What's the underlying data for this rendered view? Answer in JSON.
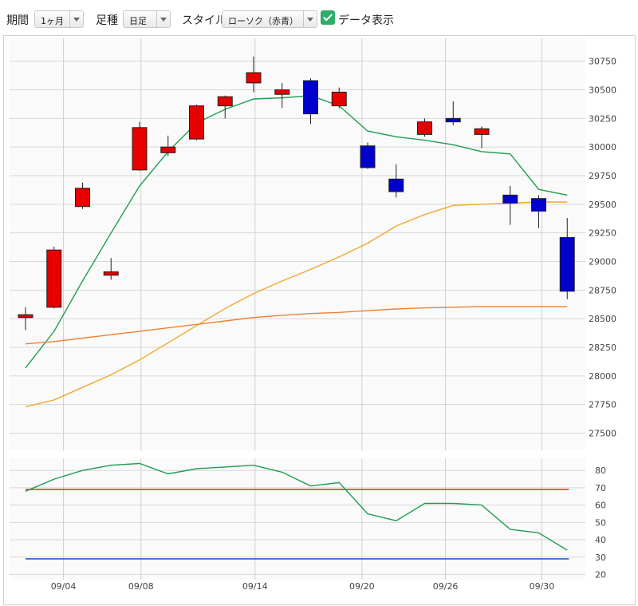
{
  "toolbar": {
    "period_label": "期間",
    "period_value": "1ヶ月",
    "ashi_label": "足種",
    "ashi_value": "日足",
    "style_label": "スタイル",
    "style_value": "ローソク（赤青）",
    "data_display_label": "データ表示",
    "data_display_checked": true
  },
  "chart_data": [
    {
      "type": "candlestick",
      "title": "",
      "x_ticks": [
        "09/04",
        "09/08",
        "09/14",
        "09/20",
        "09/26",
        "09/30"
      ],
      "y_ticks": [
        27500,
        27750,
        28000,
        28250,
        28500,
        28750,
        29000,
        29250,
        29500,
        29750,
        30000,
        30250,
        30500,
        30750
      ],
      "ylim": [
        27350,
        30950
      ],
      "up_color": "#e60000",
      "down_color": "#0000cc",
      "candles": [
        {
          "i": 0,
          "open": 28510,
          "close": 28535,
          "high": 28600,
          "low": 28400
        },
        {
          "i": 1,
          "open": 28600,
          "close": 29100,
          "high": 29130,
          "low": 28590
        },
        {
          "i": 2,
          "open": 29480,
          "close": 29640,
          "high": 29690,
          "low": 29460
        },
        {
          "i": 3,
          "open": 28880,
          "close": 28910,
          "high": 29030,
          "low": 28840
        },
        {
          "i": 4,
          "open": 29800,
          "close": 30170,
          "high": 30220,
          "low": 29790
        },
        {
          "i": 5,
          "open": 29950,
          "close": 30000,
          "high": 30100,
          "low": 29920
        },
        {
          "i": 6,
          "open": 30070,
          "close": 30360,
          "high": 30370,
          "low": 30060
        },
        {
          "i": 7,
          "open": 30360,
          "close": 30440,
          "high": 30450,
          "low": 30250
        },
        {
          "i": 8,
          "open": 30560,
          "close": 30650,
          "high": 30790,
          "low": 30480
        },
        {
          "i": 9,
          "open": 30460,
          "close": 30500,
          "high": 30560,
          "low": 30340
        },
        {
          "i": 10,
          "open": 30580,
          "close": 30290,
          "high": 30600,
          "low": 30200
        },
        {
          "i": 11,
          "open": 30360,
          "close": 30480,
          "high": 30520,
          "low": 30340
        },
        {
          "i": 12,
          "open": 30010,
          "close": 29820,
          "high": 30040,
          "low": 29810
        },
        {
          "i": 13,
          "open": 29720,
          "close": 29610,
          "high": 29850,
          "low": 29560
        },
        {
          "i": 14,
          "open": 30110,
          "close": 30220,
          "high": 30250,
          "low": 30090
        },
        {
          "i": 15,
          "open": 30250,
          "close": 30220,
          "high": 30400,
          "low": 30190
        },
        {
          "i": 16,
          "open": 30110,
          "close": 30160,
          "high": 30180,
          "low": 29990
        },
        {
          "i": 17,
          "open": 29580,
          "close": 29510,
          "high": 29660,
          "low": 29320
        },
        {
          "i": 18,
          "open": 29550,
          "close": 29440,
          "high": 29580,
          "low": 29290
        },
        {
          "i": 19,
          "open": 29210,
          "close": 28740,
          "high": 29380,
          "low": 28670
        }
      ],
      "series": [
        {
          "color": "#1e9e50",
          "values": [
            28070,
            28390,
            28830,
            29250,
            29660,
            29960,
            30210,
            30330,
            30420,
            30430,
            30450,
            30360,
            30140,
            30090,
            30060,
            30020,
            29960,
            29940,
            29630,
            29580
          ]
        },
        {
          "color": "#f0a830",
          "values": [
            27730,
            27790,
            27900,
            28010,
            28140,
            28290,
            28440,
            28590,
            28720,
            28830,
            28930,
            29040,
            29160,
            29310,
            29410,
            29490,
            29500,
            29510,
            29520,
            29520
          ]
        },
        {
          "color": "#f08030",
          "values": [
            28280,
            28300,
            28330,
            28360,
            28390,
            28420,
            28450,
            28480,
            28510,
            28530,
            28545,
            28555,
            28570,
            28585,
            28595,
            28600,
            28605,
            28605,
            28605,
            28605
          ]
        }
      ]
    },
    {
      "type": "line",
      "y_ticks": [
        20,
        30,
        40,
        50,
        60,
        70,
        80
      ],
      "ylim": [
        17,
        87
      ],
      "series": [
        {
          "color": "#1e9e50",
          "values": [
            68,
            75,
            80,
            83,
            84,
            78,
            81,
            82,
            83,
            79,
            71,
            73,
            55,
            51,
            61,
            61,
            60,
            46,
            44,
            34
          ]
        }
      ],
      "hlines": [
        {
          "value": 69,
          "color": "#e04020"
        },
        {
          "value": 29,
          "color": "#2060d0"
        }
      ]
    }
  ]
}
